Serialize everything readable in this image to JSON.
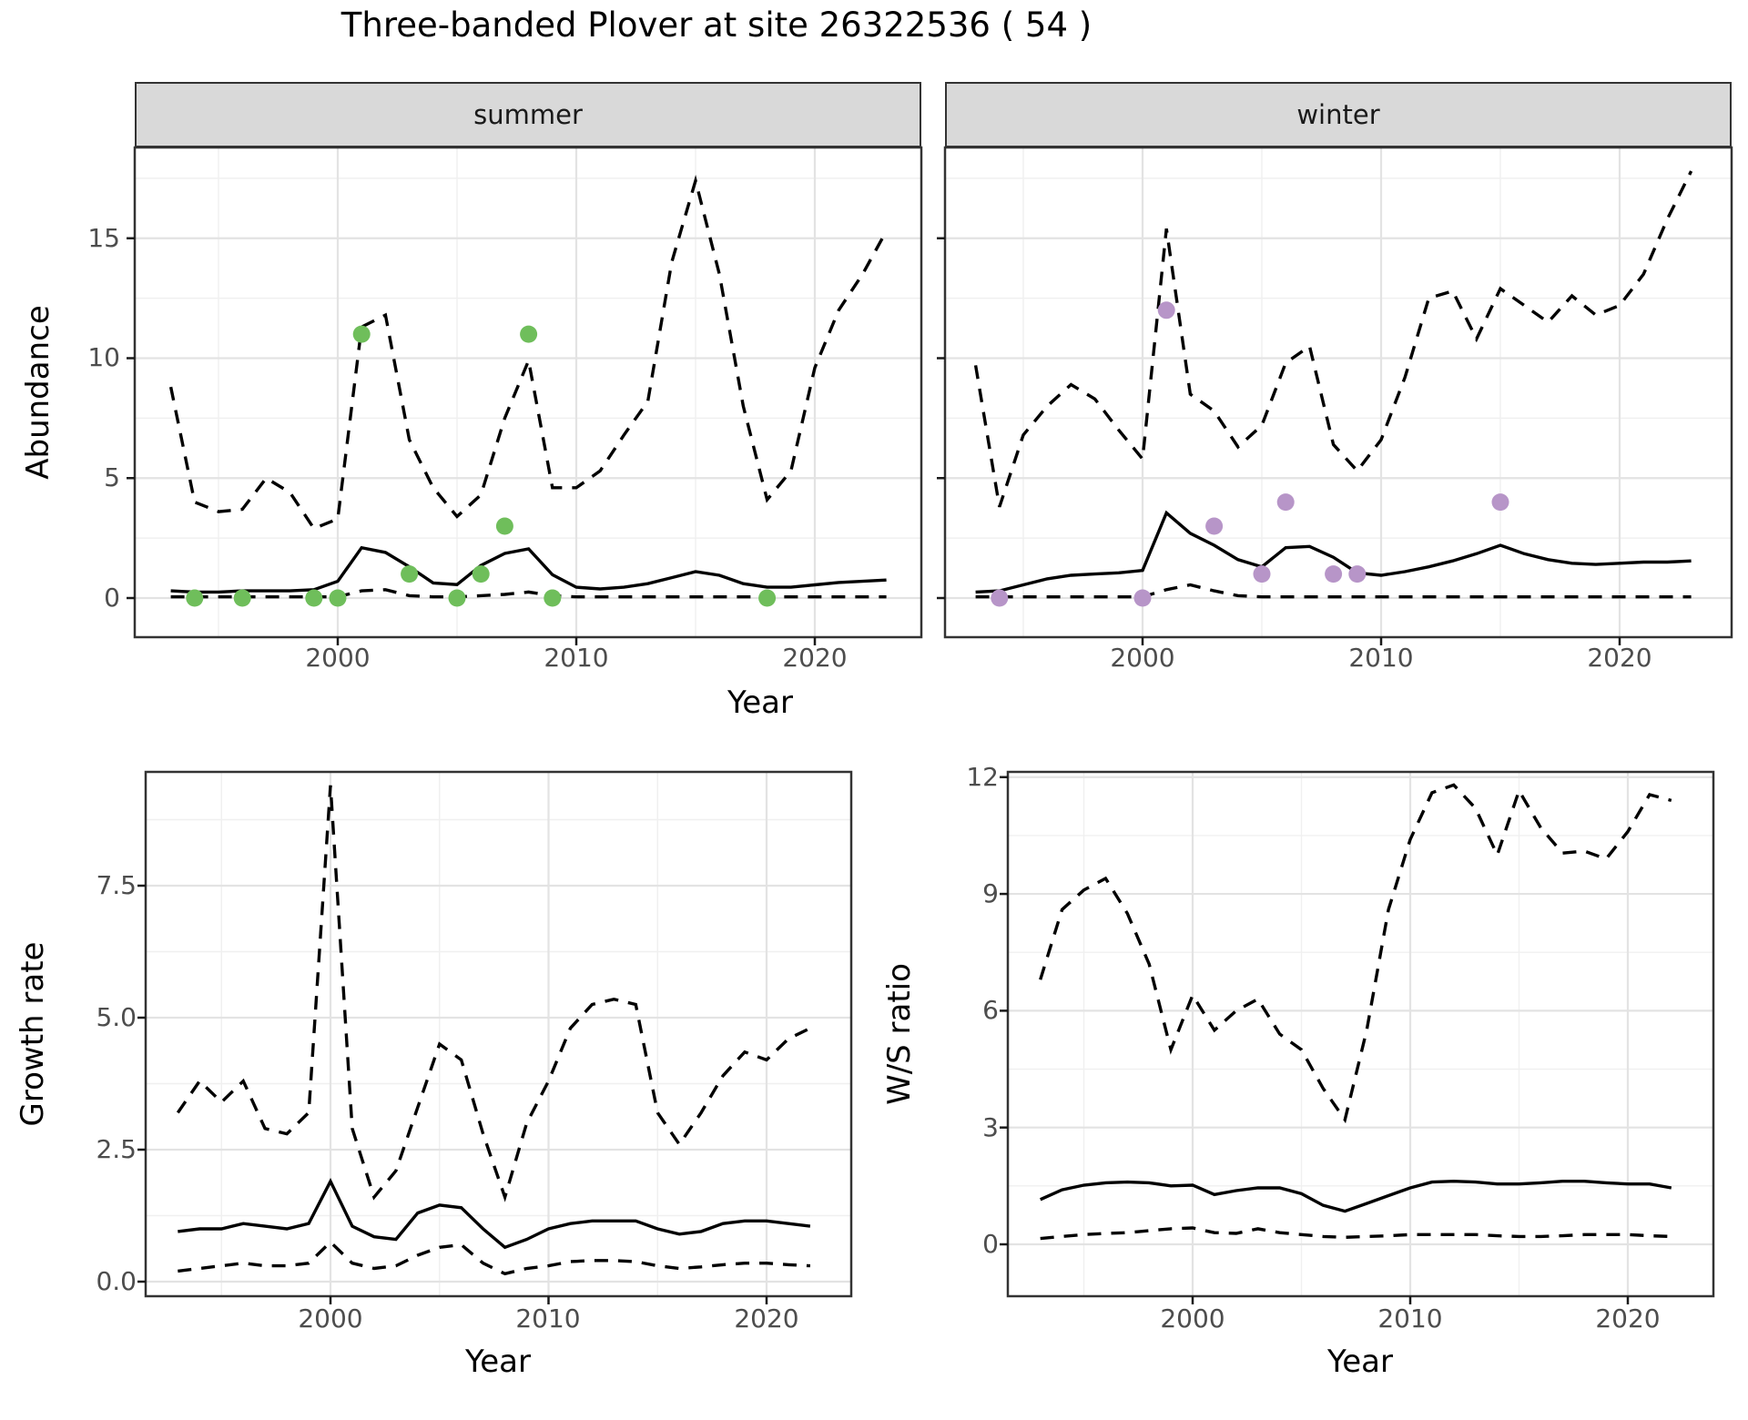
{
  "title": "Three-banded Plover at site 26322536 ( 54 )",
  "facets": {
    "summer": "summer",
    "winter": "winter"
  },
  "axis_titles": {
    "abundance": "Abundance",
    "growth": "Growth rate",
    "ws": "W/S ratio",
    "year": "Year"
  },
  "axes": {
    "abundance": [
      "0",
      "5",
      "10",
      "15"
    ],
    "growth": [
      "0.0",
      "2.5",
      "5.0",
      "7.5"
    ],
    "ws": [
      "0",
      "3",
      "6",
      "9",
      "12"
    ],
    "years": [
      "2000",
      "2010",
      "2020"
    ]
  },
  "colors": {
    "summer_points": "#6fbe5b",
    "winter_points": "#b795c8",
    "line": "#000000",
    "strip_bg": "#d9d9d9",
    "grid_major": "#e3e3e3",
    "grid_minor": "#f0f0f0",
    "panel_border": "#333333",
    "tick_text": "#4d4d4d"
  },
  "chart_data": [
    {
      "type": "line",
      "panel": "summer",
      "facet": "summer",
      "title": "Abundance, summer facet",
      "xlabel": "Year",
      "ylabel": "Abundance",
      "ylim": [
        0,
        18.5
      ],
      "x": [
        1993,
        1994,
        1995,
        1996,
        1997,
        1998,
        1999,
        2000,
        2001,
        2002,
        2003,
        2004,
        2005,
        2006,
        2007,
        2008,
        2009,
        2010,
        2011,
        2012,
        2013,
        2014,
        2015,
        2016,
        2017,
        2018,
        2019,
        2020,
        2021,
        2022,
        2023
      ],
      "series": [
        {
          "name": "lower_ci",
          "style": "dashed",
          "values": [
            0.05,
            0.05,
            0.05,
            0.05,
            0.05,
            0.05,
            0.05,
            0.05,
            0.3,
            0.35,
            0.1,
            0.05,
            0.05,
            0.1,
            0.15,
            0.25,
            0.1,
            0.05,
            0.05,
            0.05,
            0.05,
            0.05,
            0.05,
            0.05,
            0.05,
            0.05,
            0.05,
            0.05,
            0.05,
            0.05,
            0.05
          ]
        },
        {
          "name": "upper_ci",
          "style": "dashed",
          "values": [
            8.8,
            4.0,
            3.6,
            3.7,
            5.0,
            4.4,
            2.9,
            3.3,
            11.3,
            11.8,
            6.6,
            4.6,
            3.4,
            4.3,
            7.5,
            9.9,
            4.6,
            4.6,
            5.3,
            6.8,
            8.2,
            14.0,
            17.4,
            13.5,
            8.0,
            4.1,
            5.3,
            9.6,
            12.0,
            13.5,
            15.3
          ]
        },
        {
          "name": "fit",
          "style": "solid",
          "values": [
            0.3,
            0.25,
            0.25,
            0.3,
            0.3,
            0.3,
            0.35,
            0.7,
            2.1,
            1.9,
            1.3,
            0.63,
            0.56,
            1.36,
            1.86,
            2.05,
            0.97,
            0.45,
            0.38,
            0.45,
            0.6,
            0.85,
            1.1,
            0.95,
            0.6,
            0.45,
            0.45,
            0.55,
            0.65,
            0.7,
            0.75
          ]
        }
      ],
      "points": {
        "name": "observed_counts",
        "color": "#6fbe5b",
        "data": [
          [
            1994,
            0
          ],
          [
            1996,
            0
          ],
          [
            1999,
            0
          ],
          [
            2000,
            0
          ],
          [
            2001,
            11
          ],
          [
            2003,
            1
          ],
          [
            2005,
            0
          ],
          [
            2006,
            1
          ],
          [
            2007,
            3
          ],
          [
            2008,
            11
          ],
          [
            2009,
            0
          ],
          [
            2018,
            0
          ]
        ]
      }
    },
    {
      "type": "line",
      "panel": "winter",
      "facet": "winter",
      "title": "Abundance, winter facet",
      "xlabel": "Year",
      "ylabel": "Abundance",
      "ylim": [
        0,
        18.5
      ],
      "x": [
        1993,
        1994,
        1995,
        1996,
        1997,
        1998,
        1999,
        2000,
        2001,
        2002,
        2003,
        2004,
        2005,
        2006,
        2007,
        2008,
        2009,
        2010,
        2011,
        2012,
        2013,
        2014,
        2015,
        2016,
        2017,
        2018,
        2019,
        2020,
        2021,
        2022,
        2023
      ],
      "series": [
        {
          "name": "lower_ci",
          "style": "dashed",
          "values": [
            0.05,
            0.05,
            0.05,
            0.05,
            0.05,
            0.05,
            0.05,
            0.05,
            0.35,
            0.55,
            0.3,
            0.1,
            0.05,
            0.05,
            0.05,
            0.05,
            0.05,
            0.05,
            0.05,
            0.05,
            0.05,
            0.05,
            0.05,
            0.05,
            0.05,
            0.05,
            0.05,
            0.05,
            0.05,
            0.05,
            0.05
          ]
        },
        {
          "name": "upper_ci",
          "style": "dashed",
          "values": [
            9.7,
            3.8,
            6.8,
            8.0,
            8.9,
            8.3,
            7.0,
            5.8,
            15.4,
            8.5,
            7.8,
            6.3,
            7.2,
            9.8,
            10.5,
            6.4,
            5.3,
            6.6,
            9.2,
            12.5,
            12.8,
            10.8,
            12.9,
            12.2,
            11.5,
            12.6,
            11.8,
            12.2,
            13.5,
            15.8,
            17.8
          ]
        },
        {
          "name": "fit",
          "style": "solid",
          "values": [
            0.25,
            0.3,
            0.55,
            0.8,
            0.95,
            1.0,
            1.05,
            1.15,
            3.55,
            2.7,
            2.2,
            1.6,
            1.3,
            2.1,
            2.15,
            1.7,
            1.05,
            0.95,
            1.1,
            1.3,
            1.55,
            1.85,
            2.2,
            1.85,
            1.6,
            1.45,
            1.4,
            1.45,
            1.5,
            1.5,
            1.55
          ]
        }
      ],
      "points": {
        "name": "observed_counts",
        "color": "#b795c8",
        "data": [
          [
            1994,
            0
          ],
          [
            2000,
            0
          ],
          [
            2001,
            12
          ],
          [
            2003,
            3
          ],
          [
            2005,
            1
          ],
          [
            2006,
            4
          ],
          [
            2008,
            1
          ],
          [
            2009,
            1
          ],
          [
            2015,
            4
          ]
        ]
      }
    },
    {
      "type": "line",
      "panel": "growth",
      "title": "Growth rate",
      "xlabel": "Year",
      "ylabel": "Growth rate",
      "ylim": [
        0,
        9.9
      ],
      "x": [
        1993,
        1994,
        1995,
        1996,
        1997,
        1998,
        1999,
        2000,
        2001,
        2002,
        2003,
        2004,
        2005,
        2006,
        2007,
        2008,
        2009,
        2010,
        2011,
        2012,
        2013,
        2014,
        2015,
        2016,
        2017,
        2018,
        2019,
        2020,
        2021,
        2022
      ],
      "series": [
        {
          "name": "lower_ci",
          "style": "dashed",
          "values": [
            0.2,
            0.25,
            0.3,
            0.35,
            0.3,
            0.3,
            0.35,
            0.75,
            0.35,
            0.25,
            0.3,
            0.5,
            0.65,
            0.7,
            0.35,
            0.15,
            0.25,
            0.3,
            0.38,
            0.4,
            0.4,
            0.38,
            0.3,
            0.25,
            0.28,
            0.32,
            0.35,
            0.35,
            0.32,
            0.3
          ]
        },
        {
          "name": "upper_ci",
          "style": "dashed",
          "values": [
            3.2,
            3.8,
            3.4,
            3.8,
            2.9,
            2.8,
            3.2,
            9.4,
            2.9,
            1.6,
            2.1,
            3.3,
            4.5,
            4.2,
            2.8,
            1.6,
            3.0,
            3.8,
            4.8,
            5.25,
            5.35,
            5.25,
            3.2,
            2.6,
            3.2,
            3.9,
            4.35,
            4.2,
            4.6,
            4.8
          ]
        },
        {
          "name": "fit",
          "style": "solid",
          "values": [
            0.95,
            1.0,
            1.0,
            1.1,
            1.05,
            1.0,
            1.1,
            1.9,
            1.05,
            0.85,
            0.8,
            1.3,
            1.45,
            1.4,
            1.0,
            0.65,
            0.8,
            1.0,
            1.1,
            1.15,
            1.15,
            1.15,
            1.0,
            0.9,
            0.95,
            1.1,
            1.15,
            1.15,
            1.1,
            1.05
          ]
        }
      ]
    },
    {
      "type": "line",
      "panel": "ws",
      "title": "Winter/Summer ratio",
      "xlabel": "Year",
      "ylabel": "W/S ratio",
      "ylim": [
        0,
        12.1
      ],
      "x": [
        1993,
        1994,
        1995,
        1996,
        1997,
        1998,
        1999,
        2000,
        2001,
        2002,
        2003,
        2004,
        2005,
        2006,
        2007,
        2008,
        2009,
        2010,
        2011,
        2012,
        2013,
        2014,
        2015,
        2016,
        2017,
        2018,
        2019,
        2020,
        2021,
        2022
      ],
      "series": [
        {
          "name": "lower_ci",
          "style": "dashed",
          "values": [
            0.15,
            0.2,
            0.25,
            0.28,
            0.3,
            0.35,
            0.4,
            0.42,
            0.3,
            0.28,
            0.4,
            0.3,
            0.25,
            0.2,
            0.18,
            0.2,
            0.22,
            0.25,
            0.25,
            0.25,
            0.25,
            0.22,
            0.2,
            0.2,
            0.22,
            0.25,
            0.25,
            0.25,
            0.22,
            0.2
          ]
        },
        {
          "name": "upper_ci",
          "style": "dashed",
          "values": [
            6.8,
            8.6,
            9.1,
            9.4,
            8.5,
            7.2,
            5.0,
            6.4,
            5.5,
            6.0,
            6.3,
            5.4,
            5.0,
            4.0,
            3.2,
            5.5,
            8.6,
            10.4,
            11.6,
            11.8,
            11.2,
            10.0,
            11.65,
            10.7,
            10.05,
            10.1,
            9.9,
            10.6,
            11.55,
            11.4
          ]
        },
        {
          "name": "fit",
          "style": "solid",
          "values": [
            1.15,
            1.4,
            1.52,
            1.58,
            1.6,
            1.58,
            1.5,
            1.52,
            1.28,
            1.38,
            1.45,
            1.45,
            1.3,
            1.0,
            0.85,
            1.05,
            1.25,
            1.45,
            1.6,
            1.62,
            1.6,
            1.55,
            1.55,
            1.58,
            1.62,
            1.62,
            1.58,
            1.55,
            1.55,
            1.45
          ]
        }
      ]
    }
  ]
}
